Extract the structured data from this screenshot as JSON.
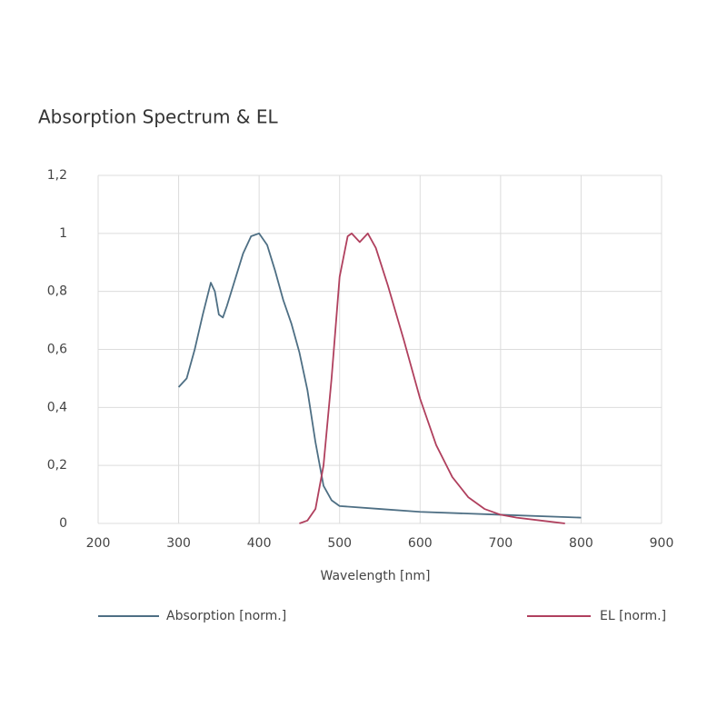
{
  "chart_data": {
    "type": "line",
    "title": "Absorption Spectrum & EL",
    "x_label": "Wavelength [nm]",
    "xlim": [
      200,
      900
    ],
    "xticks": [
      200,
      300,
      400,
      500,
      600,
      700,
      800,
      900
    ],
    "ylim": [
      0,
      1.2
    ],
    "yticks": [
      0,
      {
        "value": 0.2,
        "label": "0,2"
      },
      {
        "value": 0.4,
        "label": "0,4"
      },
      {
        "value": 0.6,
        "label": "0,6"
      },
      {
        "value": 0.8,
        "label": "0,8"
      },
      1,
      {
        "value": 1.2,
        "label": "1,2"
      }
    ],
    "grid": true,
    "series": [
      {
        "name": "Absorption [norm.]",
        "color": "#4e6f84",
        "x": [
          300,
          310,
          320,
          330,
          340,
          345,
          350,
          355,
          360,
          370,
          380,
          390,
          400,
          410,
          420,
          430,
          440,
          450,
          460,
          470,
          480,
          490,
          500,
          550,
          600,
          700,
          800
        ],
        "values": [
          0.47,
          0.5,
          0.6,
          0.72,
          0.83,
          0.8,
          0.72,
          0.71,
          0.75,
          0.84,
          0.93,
          0.99,
          1.0,
          0.96,
          0.87,
          0.77,
          0.69,
          0.59,
          0.46,
          0.28,
          0.13,
          0.08,
          0.06,
          0.05,
          0.04,
          0.03,
          0.02
        ]
      },
      {
        "name": "EL [norm.]",
        "color": "#b0405e",
        "x": [
          450,
          460,
          470,
          480,
          490,
          500,
          510,
          515,
          525,
          535,
          545,
          560,
          580,
          600,
          620,
          640,
          660,
          680,
          700,
          720,
          750,
          780
        ],
        "values": [
          0,
          0.01,
          0.05,
          0.2,
          0.5,
          0.85,
          0.99,
          1.0,
          0.97,
          1.0,
          0.95,
          0.82,
          0.63,
          0.43,
          0.27,
          0.16,
          0.09,
          0.05,
          0.03,
          0.02,
          0.01,
          0
        ]
      }
    ]
  }
}
